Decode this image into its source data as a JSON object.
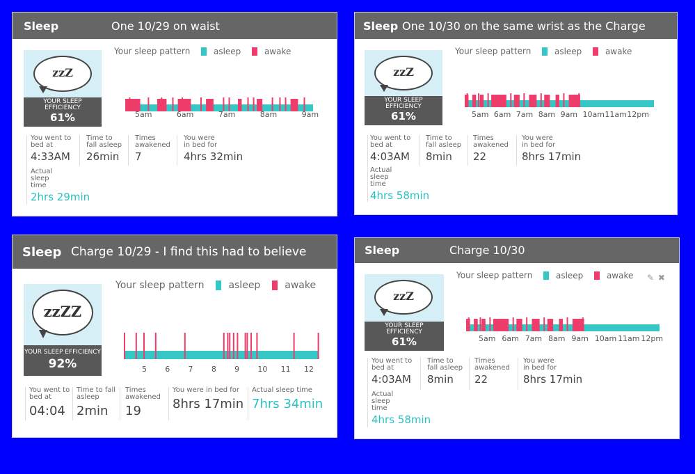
{
  "colors": {
    "asleep": "#35c6c6",
    "awake": "#ee3d6a",
    "background": "#0000ff"
  },
  "panels": [
    {
      "header": {
        "title": "Sleep",
        "caption": "One 10/29 on waist"
      },
      "bubble": "zzZ",
      "efficiency": {
        "label": "YOUR SLEEP EFFICIENCY",
        "value": "61%"
      },
      "legend": {
        "title": "Your sleep pattern",
        "asleep": "asleep",
        "awake": "awake"
      },
      "axis_labels": [
        "5am",
        "6am",
        "7am",
        "8am",
        "9am"
      ],
      "pattern": {
        "segments": [
          [
            0,
            0.08
          ],
          [
            0.17,
            0.22
          ],
          [
            0.28,
            0.35
          ],
          [
            0.43,
            0.47
          ],
          [
            0.6,
            0.62
          ],
          [
            0.7,
            0.73
          ],
          [
            0.88,
            0.92
          ]
        ],
        "spikes": [
          0.02,
          0.12,
          0.19,
          0.25,
          0.3,
          0.4,
          0.52,
          0.55,
          0.65,
          0.68,
          0.78,
          0.82,
          0.85,
          0.95
        ]
      },
      "stats": [
        {
          "label": "You went to bed at",
          "value": "4:33AM"
        },
        {
          "label": "Time to fall asleep",
          "value": "26min"
        },
        {
          "label": "Times awakened",
          "value": "7"
        },
        {
          "label": "You were in bed for",
          "value": "4hrs 32min"
        },
        {
          "label": "Actual sleep time",
          "value": "2hrs 29min"
        }
      ]
    },
    {
      "header": {
        "title": "Sleep",
        "caption": "One 10/30  on the same wrist as the Charge"
      },
      "bubble": "zzZ",
      "efficiency": {
        "label": "YOUR SLEEP EFFICIENCY",
        "value": "61%"
      },
      "legend": {
        "title": "Your sleep pattern",
        "asleep": "asleep",
        "awake": "awake"
      },
      "axis_labels": [
        "5am",
        "6am",
        "7am",
        "8am",
        "9am",
        "10am",
        "11am",
        "12pm"
      ],
      "pattern": {
        "segments": [
          [
            0.0,
            0.02
          ],
          [
            0.04,
            0.06
          ],
          [
            0.08,
            0.1
          ],
          [
            0.14,
            0.22
          ],
          [
            0.26,
            0.29
          ],
          [
            0.34,
            0.38
          ],
          [
            0.42,
            0.45
          ],
          [
            0.48,
            0.5
          ],
          [
            0.55,
            0.61
          ]
        ],
        "spikes": [
          0.01,
          0.07,
          0.12,
          0.24,
          0.31,
          0.4,
          0.52,
          0.6
        ]
      },
      "stats": [
        {
          "label": "You went to bed at",
          "value": "4:03AM"
        },
        {
          "label": "Time to fall asleep",
          "value": "8min"
        },
        {
          "label": "Times awakened",
          "value": "22"
        },
        {
          "label": "You were in bed for",
          "value": "8hrs 17min"
        },
        {
          "label": "Actual sleep time",
          "value": "4hrs 58min"
        }
      ]
    },
    {
      "header": {
        "title": "Sleep",
        "caption": "Charge 10/29 - I find this had to believe"
      },
      "bubble": "zzZZ",
      "efficiency": {
        "label": "YOUR SLEEP EFFICIENCY",
        "value": "92%"
      },
      "legend": {
        "title": "Your sleep pattern",
        "asleep": "asleep",
        "awake": "awake"
      },
      "axis_labels": [
        "5",
        "6",
        "7",
        "8",
        "9",
        "10",
        "11",
        "12"
      ],
      "pattern": {
        "segments": [],
        "spikes": [
          0.0,
          0.06,
          0.1,
          0.16,
          0.31,
          0.51,
          0.53,
          0.54,
          0.56,
          0.58,
          0.62,
          0.63,
          0.65,
          0.68,
          0.87,
          0.995
        ]
      },
      "stats": [
        {
          "label": "You went to bed at",
          "value": "04:04"
        },
        {
          "label": "Time to fall asleep",
          "value": "2min"
        },
        {
          "label": "Times awakened",
          "value": "19"
        },
        {
          "label": "You were in bed for",
          "value": "8hrs 17min"
        },
        {
          "label": "Actual sleep time",
          "value": "7hrs 34min"
        }
      ]
    },
    {
      "header": {
        "title": "Sleep",
        "caption": "Charge 10/30"
      },
      "bubble": "zzZ",
      "efficiency": {
        "label": "YOUR SLEEP EFFICIENCY",
        "value": "61%"
      },
      "legend": {
        "title": "Your sleep pattern",
        "asleep": "asleep",
        "awake": "awake"
      },
      "axis_labels": [
        "5am",
        "6am",
        "7am",
        "8am",
        "9am",
        "10am",
        "11am",
        "12pm"
      ],
      "pattern": {
        "segments": [
          [
            0.0,
            0.02
          ],
          [
            0.04,
            0.06
          ],
          [
            0.08,
            0.1
          ],
          [
            0.14,
            0.22
          ],
          [
            0.26,
            0.29
          ],
          [
            0.34,
            0.38
          ],
          [
            0.42,
            0.45
          ],
          [
            0.48,
            0.5
          ],
          [
            0.55,
            0.61
          ]
        ],
        "spikes": [
          0.01,
          0.07,
          0.12,
          0.24,
          0.31,
          0.4,
          0.52,
          0.6
        ]
      },
      "stats": [
        {
          "label": "You went to bed at",
          "value": "4:03AM"
        },
        {
          "label": "Time to fall asleep",
          "value": "8min"
        },
        {
          "label": "Times awakened",
          "value": "22"
        },
        {
          "label": "You were in bed for",
          "value": "8hrs 17min"
        },
        {
          "label": "Actual sleep time",
          "value": "4hrs 58min"
        }
      ]
    }
  ]
}
